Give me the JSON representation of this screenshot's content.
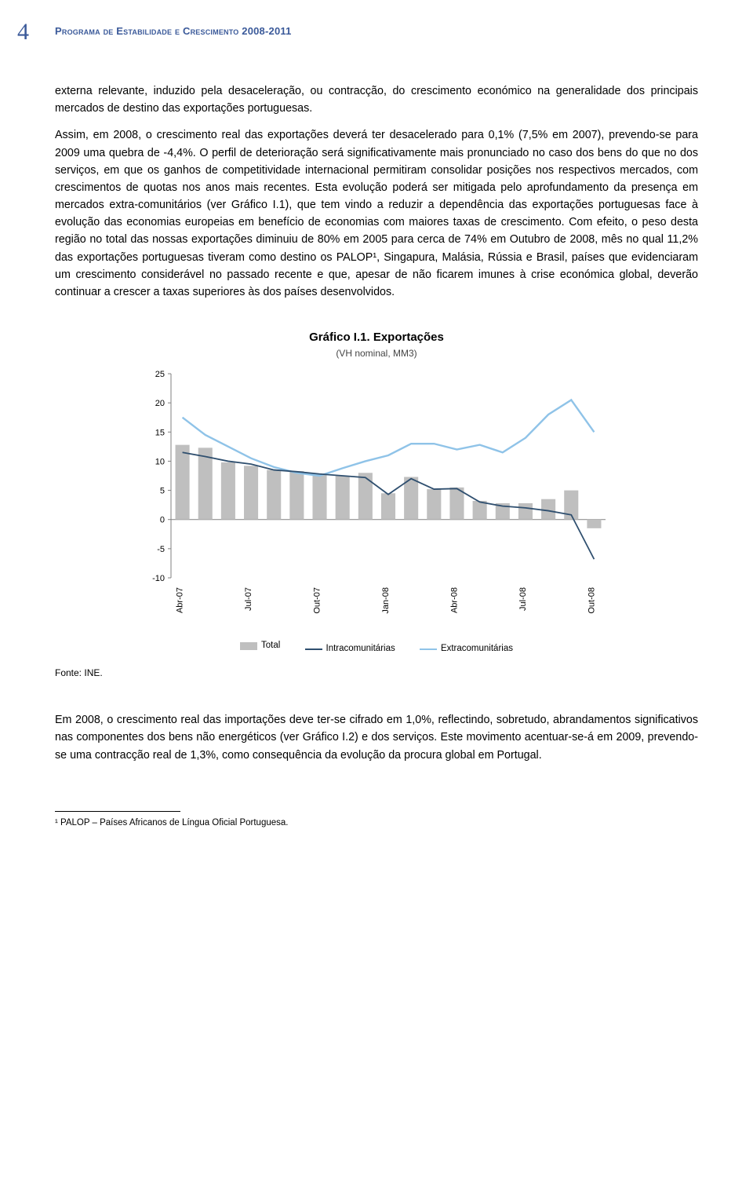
{
  "header": {
    "page_number": "4",
    "title": "Programa de Estabilidade e Crescimento 2008-2011"
  },
  "paragraphs": {
    "p1": "externa relevante, induzido pela desaceleração, ou contracção, do crescimento económico na generalidade dos principais mercados de destino das exportações portuguesas.",
    "p2": "Assim, em 2008, o crescimento real das exportações deverá ter desacelerado para 0,1% (7,5% em 2007), prevendo-se para 2009 uma quebra de -4,4%. O perfil de deterioração será significativamente mais pronunciado no caso dos bens do que no dos serviços, em que os ganhos de competitividade internacional permitiram consolidar posições nos respectivos mercados, com crescimentos de quotas nos anos mais recentes. Esta evolução poderá ser mitigada pelo aprofundamento da presença em mercados extra-comunitários (ver Gráfico I.1), que tem vindo a reduzir a dependência das exportações portuguesas face à evolução das economias europeias em benefício de economias com maiores taxas de crescimento. Com efeito, o peso desta região no total das nossas exportações diminuiu de 80% em 2005 para cerca de 74% em Outubro de 2008, mês no qual 11,2% das exportações portuguesas tiveram como destino os PALOP¹, Singapura, Malásia, Rússia e Brasil, países que evidenciaram um crescimento considerável no passado recente e que, apesar de não ficarem imunes à crise económica global, deverão continuar a crescer a taxas superiores às dos países desenvolvidos.",
    "p3": "Em 2008, o crescimento real das importações deve ter-se cifrado em 1,0%, reflectindo, sobretudo, abrandamentos significativos nas componentes dos bens não energéticos (ver Gráfico I.2) e dos serviços. Este movimento acentuar-se-á em 2009, prevendo-se uma contracção real de 1,3%, como consequência da evolução da procura global em Portugal."
  },
  "chart": {
    "title": "Gráfico I.1. Exportações",
    "subtitle": "(VH nominal, MM3)",
    "type": "bar+line",
    "x_labels": [
      "Abr-07",
      "Jul-07",
      "Out-07",
      "Jan-08",
      "Abr-08",
      "Jul-08",
      "Out-08"
    ],
    "x_label_positions_idx": [
      0,
      3,
      6,
      9,
      12,
      15,
      18
    ],
    "y_ticks": [
      -10,
      -5,
      0,
      5,
      10,
      15,
      20,
      25
    ],
    "ylim": [
      -10,
      25
    ],
    "bars_total": [
      12.8,
      12.3,
      9.8,
      9.2,
      8.5,
      8.3,
      7.8,
      7.5,
      8.0,
      4.5,
      7.3,
      5.2,
      5.5,
      3.2,
      2.8,
      2.8,
      3.5,
      5.0,
      -1.5
    ],
    "line_intra": [
      11.5,
      10.8,
      10.0,
      9.5,
      8.5,
      8.2,
      7.8,
      7.5,
      7.2,
      4.3,
      7.0,
      5.2,
      5.3,
      3.0,
      2.3,
      2.0,
      1.5,
      0.8,
      -6.8
    ],
    "line_extra": [
      17.5,
      14.5,
      12.5,
      10.5,
      9.0,
      8.0,
      7.5,
      8.8,
      10.0,
      11.0,
      13.0,
      13.0,
      12.0,
      12.8,
      11.5,
      14.0,
      18.0,
      20.5,
      15.0
    ],
    "colors": {
      "bar": "#bfbfbf",
      "line_intra": "#2f4f6f",
      "line_extra": "#8fc3e8",
      "axis": "#808080",
      "tick_text": "#000000",
      "background": "#ffffff"
    },
    "font_sizes": {
      "title": 15,
      "subtitle": 12,
      "ticks": 11,
      "legend": 11.5
    },
    "legend": {
      "total": "Total",
      "intra": "Intracomunitárias",
      "extra": "Extracomunitárias"
    }
  },
  "source": "Fonte: INE.",
  "footnote": "¹ PALOP – Países Africanos de Língua Oficial Portuguesa."
}
